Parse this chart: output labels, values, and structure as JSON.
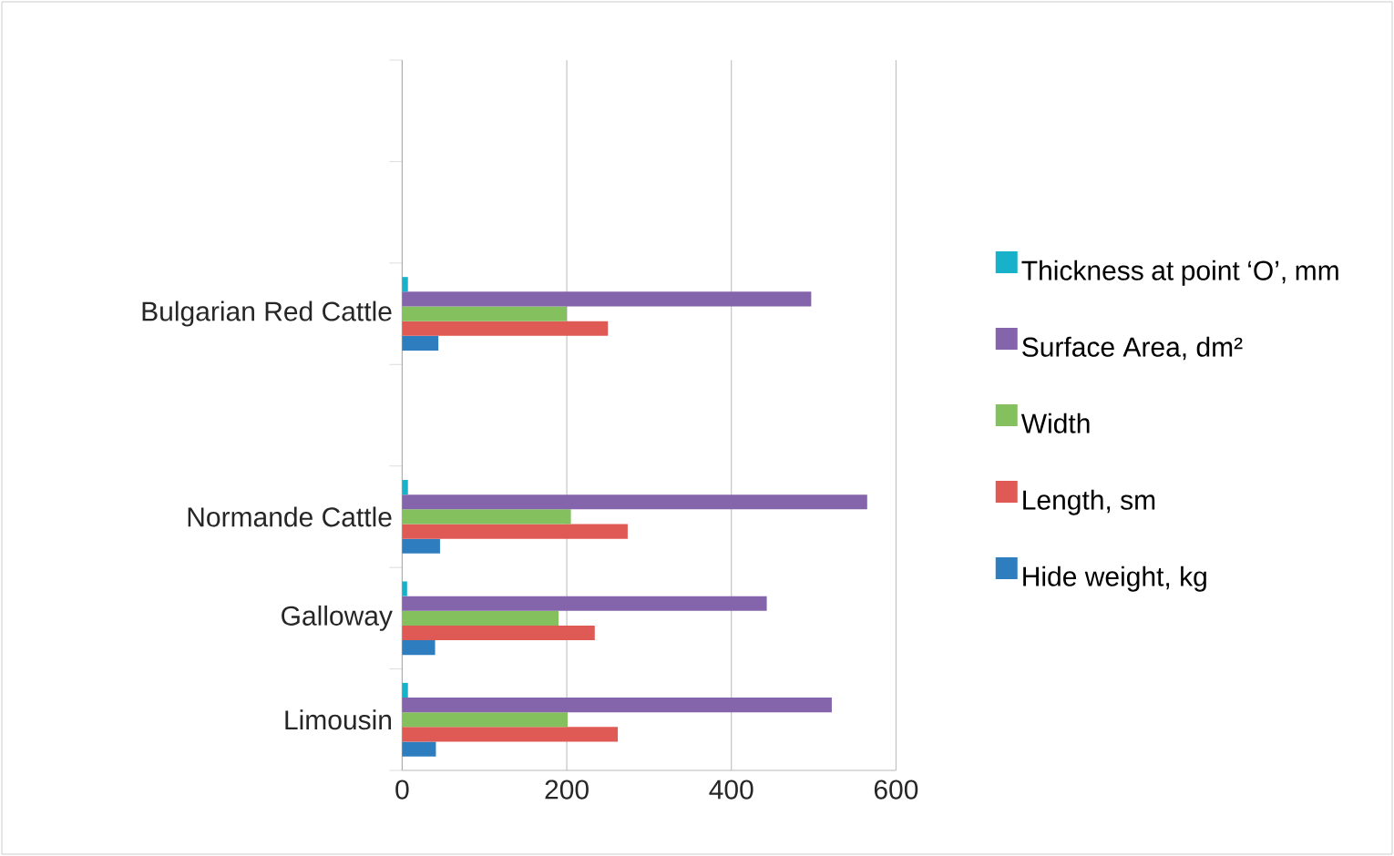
{
  "chart_data": {
    "type": "bar",
    "orientation": "horizontal",
    "categories": [
      null,
      null,
      "Bulgarian Red Cattle",
      null,
      "Normande Cattle",
      "Galloway",
      "Limousin"
    ],
    "series": [
      {
        "name": "Hide weight, kg",
        "color": "#2e7ebf",
        "values": [
          null,
          null,
          44,
          null,
          46,
          40,
          41
        ]
      },
      {
        "name": "Length, sm",
        "color": "#e05a55",
        "values": [
          null,
          null,
          250,
          null,
          274,
          234,
          262
        ]
      },
      {
        "name": "Width",
        "color": "#85c05e",
        "values": [
          null,
          null,
          200,
          null,
          205,
          190,
          201
        ]
      },
      {
        "name": "Surface Area, dm²",
        "color": "#8465ab",
        "values": [
          null,
          null,
          497,
          null,
          565,
          443,
          522
        ]
      },
      {
        "name": "Thickness at point ‘O’, mm",
        "color": "#17b2c9",
        "values": [
          null,
          null,
          7,
          null,
          7,
          6,
          7
        ]
      }
    ],
    "xlim": [
      0,
      600
    ],
    "xticks": [
      0,
      200,
      400,
      600
    ],
    "grid": "x",
    "legend": "right"
  }
}
